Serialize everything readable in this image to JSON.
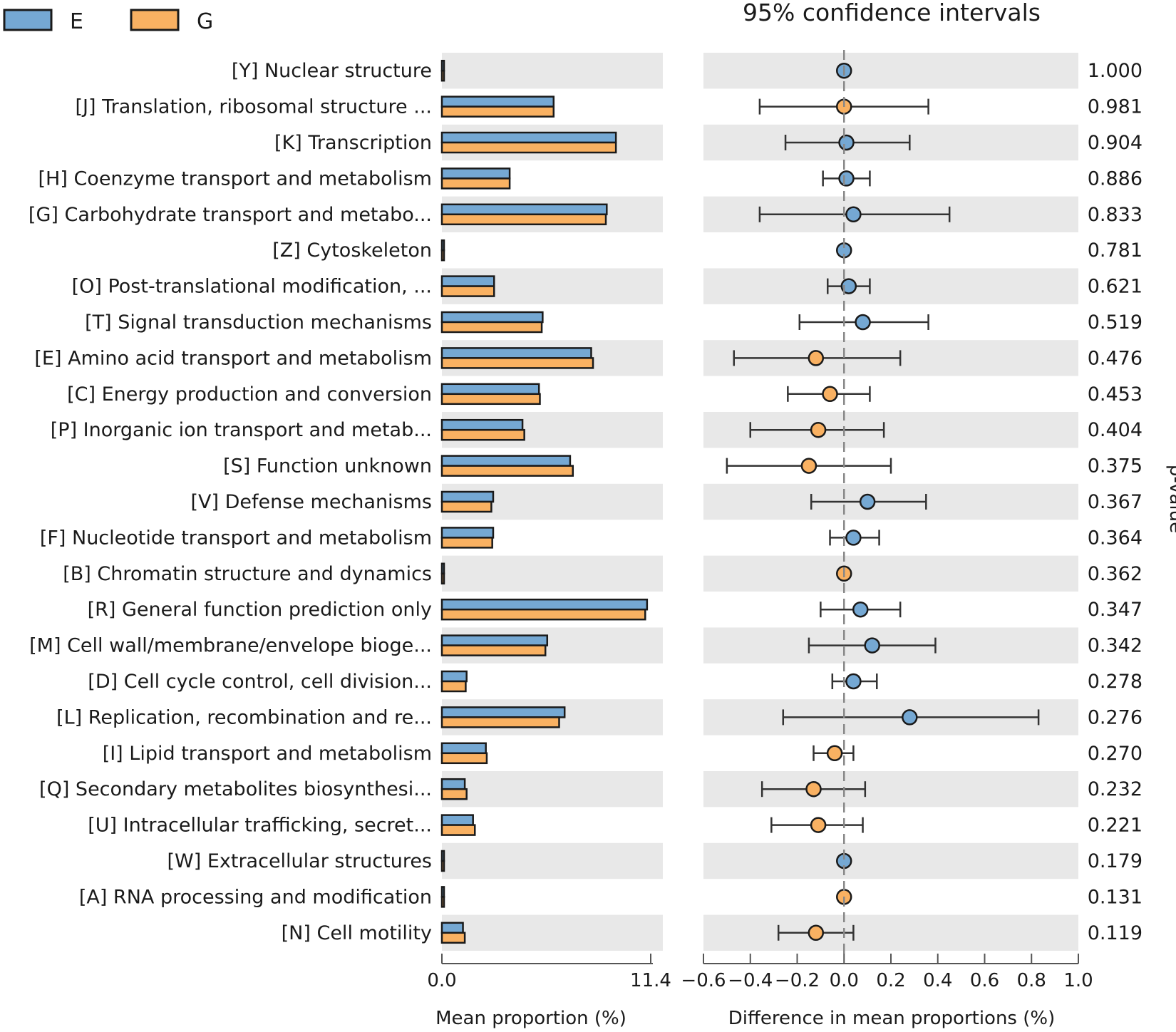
{
  "chart_data": {
    "type": "bar",
    "subtype": "extended_error_bar",
    "ci_title": "95% confidence intervals",
    "legend": [
      {
        "name": "E",
        "color": "#75a8d3"
      },
      {
        "name": "G",
        "color": "#f9b162"
      }
    ],
    "left_axis": {
      "title": "Mean proportion (%)",
      "range": [
        0,
        11.4
      ],
      "tick_labels": [
        "0.0",
        "11.4"
      ]
    },
    "right_axis": {
      "title": "Difference in mean proportions (%)",
      "range": [
        -0.6,
        1.0
      ],
      "tick_values": [
        -0.6,
        -0.4,
        -0.2,
        0.0,
        0.2,
        0.4,
        0.6,
        0.8,
        1.0
      ],
      "tick_labels": [
        "−0.6",
        "−0.4",
        "−0.2",
        "0.0",
        "0.2",
        "0.4",
        "0.6",
        "0.8",
        "1.0"
      ]
    },
    "pvalue_label": "p-value",
    "categories": [
      {
        "label": "[Y] Nuclear structure",
        "E": 0.02,
        "G": 0.02,
        "diff": 0.0,
        "ci": [
          0.0,
          0.0
        ],
        "favored": "E",
        "p": "1.000"
      },
      {
        "label": "[J] Translation, ribosomal structure ...",
        "E": 6.1,
        "G": 6.1,
        "diff": 0.0,
        "ci": [
          -0.36,
          0.36
        ],
        "favored": "G",
        "p": "0.981"
      },
      {
        "label": "[K] Transcription",
        "E": 9.5,
        "G": 9.5,
        "diff": 0.01,
        "ci": [
          -0.25,
          0.28
        ],
        "favored": "E",
        "p": "0.904"
      },
      {
        "label": "[H] Coenzyme transport and metabolism",
        "E": 3.7,
        "G": 3.7,
        "diff": 0.01,
        "ci": [
          -0.09,
          0.11
        ],
        "favored": "E",
        "p": "0.886"
      },
      {
        "label": "[G] Carbohydrate transport and metabo...",
        "E": 9.0,
        "G": 8.95,
        "diff": 0.04,
        "ci": [
          -0.36,
          0.45
        ],
        "favored": "E",
        "p": "0.833"
      },
      {
        "label": "[Z] Cytoskeleton",
        "E": 0.05,
        "G": 0.05,
        "diff": 0.0,
        "ci": [
          0.0,
          0.0
        ],
        "favored": "E",
        "p": "0.781"
      },
      {
        "label": "[O] Post-translational modification, ...",
        "E": 2.85,
        "G": 2.85,
        "diff": 0.02,
        "ci": [
          -0.07,
          0.11
        ],
        "favored": "E",
        "p": "0.621"
      },
      {
        "label": "[T] Signal transduction mechanisms",
        "E": 5.5,
        "G": 5.45,
        "diff": 0.08,
        "ci": [
          -0.19,
          0.36
        ],
        "favored": "E",
        "p": "0.519"
      },
      {
        "label": "[E] Amino acid transport and metabolism",
        "E": 8.15,
        "G": 8.25,
        "diff": -0.12,
        "ci": [
          -0.47,
          0.24
        ],
        "favored": "G",
        "p": "0.476"
      },
      {
        "label": "[C] Energy production and conversion",
        "E": 5.3,
        "G": 5.35,
        "diff": -0.06,
        "ci": [
          -0.24,
          0.11
        ],
        "favored": "G",
        "p": "0.453"
      },
      {
        "label": "[P] Inorganic ion transport and metab...",
        "E": 4.4,
        "G": 4.5,
        "diff": -0.11,
        "ci": [
          -0.4,
          0.17
        ],
        "favored": "G",
        "p": "0.404"
      },
      {
        "label": "[S] Function unknown",
        "E": 7.0,
        "G": 7.15,
        "diff": -0.15,
        "ci": [
          -0.5,
          0.2
        ],
        "favored": "G",
        "p": "0.375"
      },
      {
        "label": "[V] Defense mechanisms",
        "E": 2.8,
        "G": 2.7,
        "diff": 0.1,
        "ci": [
          -0.14,
          0.35
        ],
        "favored": "E",
        "p": "0.367"
      },
      {
        "label": "[F] Nucleotide transport and metabolism",
        "E": 2.8,
        "G": 2.75,
        "diff": 0.04,
        "ci": [
          -0.06,
          0.15
        ],
        "favored": "E",
        "p": "0.364"
      },
      {
        "label": "[B] Chromatin structure and dynamics",
        "E": 0.05,
        "G": 0.05,
        "diff": 0.0,
        "ci": [
          0.0,
          0.0
        ],
        "favored": "G",
        "p": "0.362"
      },
      {
        "label": "[R] General function prediction only",
        "E": 11.2,
        "G": 11.1,
        "diff": 0.07,
        "ci": [
          -0.1,
          0.24
        ],
        "favored": "E",
        "p": "0.347"
      },
      {
        "label": "[M] Cell wall/membrane/envelope bioge...",
        "E": 5.75,
        "G": 5.65,
        "diff": 0.12,
        "ci": [
          -0.15,
          0.39
        ],
        "favored": "E",
        "p": "0.342"
      },
      {
        "label": "[D] Cell cycle control, cell division...",
        "E": 1.35,
        "G": 1.3,
        "diff": 0.04,
        "ci": [
          -0.05,
          0.14
        ],
        "favored": "E",
        "p": "0.278"
      },
      {
        "label": "[L] Replication, recombination and re...",
        "E": 6.7,
        "G": 6.4,
        "diff": 0.28,
        "ci": [
          -0.26,
          0.83
        ],
        "favored": "E",
        "p": "0.276"
      },
      {
        "label": "[I] Lipid transport and metabolism",
        "E": 2.4,
        "G": 2.45,
        "diff": -0.04,
        "ci": [
          -0.13,
          0.04
        ],
        "favored": "G",
        "p": "0.270"
      },
      {
        "label": "[Q] Secondary metabolites biosynthesi...",
        "E": 1.25,
        "G": 1.35,
        "diff": -0.13,
        "ci": [
          -0.35,
          0.09
        ],
        "favored": "G",
        "p": "0.232"
      },
      {
        "label": "[U] Intracellular trafficking, secret...",
        "E": 1.7,
        "G": 1.8,
        "diff": -0.11,
        "ci": [
          -0.31,
          0.08
        ],
        "favored": "G",
        "p": "0.221"
      },
      {
        "label": "[W] Extracellular structures",
        "E": 0.05,
        "G": 0.05,
        "diff": 0.0,
        "ci": [
          0.0,
          0.0
        ],
        "favored": "E",
        "p": "0.179"
      },
      {
        "label": "[A] RNA processing and modification",
        "E": 0.05,
        "G": 0.05,
        "diff": 0.0,
        "ci": [
          0.0,
          0.0
        ],
        "favored": "G",
        "p": "0.131"
      },
      {
        "label": "[N] Cell motility",
        "E": 1.15,
        "G": 1.25,
        "diff": -0.12,
        "ci": [
          -0.28,
          0.04
        ],
        "favored": "G",
        "p": "0.119"
      }
    ]
  }
}
